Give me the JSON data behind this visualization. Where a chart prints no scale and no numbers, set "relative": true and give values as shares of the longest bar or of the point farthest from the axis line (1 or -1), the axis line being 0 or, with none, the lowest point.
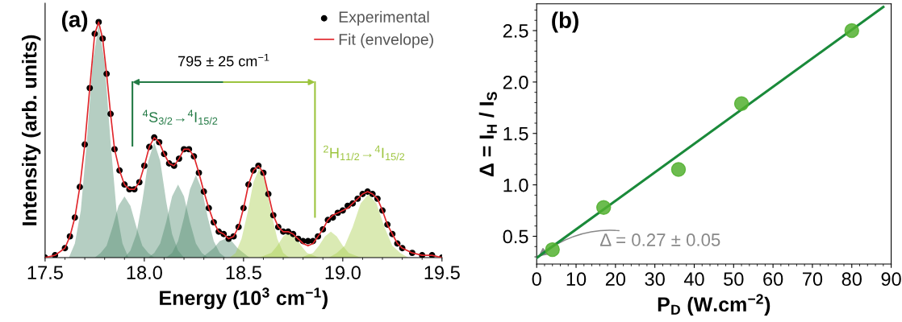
{
  "chart_data": [
    {
      "type": "area",
      "relative": true,
      "xlabel": "Energy (10$^{3}$ cm$^{−1}$)",
      "ylabel": "Intensity (arb. units)",
      "xlim": [
        17.5,
        19.5
      ],
      "xticks": [
        {
          "value": 17.5,
          "label": "17.5"
        },
        {
          "value": 18.0,
          "label": "18.0"
        },
        {
          "value": 18.5,
          "label": "18.5"
        },
        {
          "value": 19.0,
          "label": "19.0"
        },
        {
          "value": 19.5,
          "label": "19.5"
        }
      ],
      "legend": "top right",
      "grid": false,
      "annotations": [
        "(a)",
        "795 ± 25 cm$^{−1}$",
        "$^{4}$S$_{3/2}$→$^{4}$I$_{15/2}$",
        "$^{2}$H$_{11/2}$→$^{4}$I$_{15/2}$"
      ],
      "series": [
        {
          "color": "#4f8a6e",
          "x": [
            17.62,
            17.65,
            17.68,
            17.71,
            17.74,
            17.77,
            17.8,
            17.83,
            17.86,
            17.89,
            17.92
          ],
          "values": [
            0,
            0.06,
            0.2,
            0.49,
            0.83,
            0.99,
            0.83,
            0.49,
            0.2,
            0.06,
            0
          ]
        },
        {
          "color": "#4f8a6e",
          "x": [
            17.75,
            17.78,
            17.81,
            17.84,
            17.87,
            17.9,
            17.93,
            17.96,
            17.99,
            18.02,
            18.05
          ],
          "values": [
            0,
            0.02,
            0.05,
            0.13,
            0.22,
            0.26,
            0.22,
            0.13,
            0.05,
            0.02,
            0
          ]
        },
        {
          "color": "#4f8a6e",
          "x": [
            17.9,
            17.93,
            17.96,
            17.99,
            18.02,
            18.05,
            18.08,
            18.11,
            18.14,
            18.17,
            18.2
          ],
          "values": [
            0,
            0.03,
            0.1,
            0.24,
            0.41,
            0.49,
            0.41,
            0.24,
            0.1,
            0.03,
            0
          ]
        },
        {
          "color": "#4f8a6e",
          "x": [
            18.02,
            18.05,
            18.08,
            18.11,
            18.14,
            18.17,
            18.2,
            18.23,
            18.26,
            18.29,
            18.32
          ],
          "values": [
            0,
            0.02,
            0.06,
            0.15,
            0.26,
            0.31,
            0.26,
            0.15,
            0.06,
            0.02,
            0
          ]
        },
        {
          "color": "#4f8a6e",
          "x": [
            18.11,
            18.14,
            18.17,
            18.2,
            18.23,
            18.26,
            18.29,
            18.32,
            18.35,
            18.38,
            18.41
          ],
          "values": [
            0,
            0.02,
            0.07,
            0.17,
            0.29,
            0.35,
            0.29,
            0.17,
            0.07,
            0.02,
            0
          ]
        },
        {
          "color": "#4f8a6e",
          "x": [
            18.26,
            18.29,
            18.32,
            18.35,
            18.38,
            18.41,
            18.44,
            18.47,
            18.5,
            18.53,
            18.56
          ],
          "values": [
            0,
            0,
            0.02,
            0.04,
            0.07,
            0.08,
            0.07,
            0.04,
            0.02,
            0,
            0
          ]
        },
        {
          "color": "#a8cc4a",
          "x": [
            18.43,
            18.46,
            18.49,
            18.52,
            18.55,
            18.58,
            18.61,
            18.64,
            18.67,
            18.7,
            18.73
          ],
          "values": [
            0,
            0.02,
            0.08,
            0.19,
            0.32,
            0.38,
            0.32,
            0.19,
            0.08,
            0.02,
            0
          ]
        },
        {
          "color": "#a8cc4a",
          "x": [
            18.58,
            18.61,
            18.64,
            18.67,
            18.7,
            18.73,
            18.76,
            18.79,
            18.82,
            18.85,
            18.88
          ],
          "values": [
            0,
            0.01,
            0.02,
            0.05,
            0.09,
            0.11,
            0.09,
            0.05,
            0.02,
            0.01,
            0
          ]
        },
        {
          "color": "#a8cc4a",
          "x": [
            18.79,
            18.82,
            18.85,
            18.88,
            18.91,
            18.94,
            18.97,
            19.0,
            19.03,
            19.06,
            19.09
          ],
          "values": [
            0,
            0.01,
            0.02,
            0.05,
            0.09,
            0.11,
            0.09,
            0.05,
            0.02,
            0.01,
            0
          ]
        },
        {
          "color": "#a8cc4a",
          "x": [
            18.93,
            18.97,
            19.01,
            19.05,
            19.09,
            19.13,
            19.17,
            19.21,
            19.25,
            19.29,
            19.33
          ],
          "values": [
            0,
            0.02,
            0.05,
            0.13,
            0.23,
            0.27,
            0.23,
            0.13,
            0.05,
            0.02,
            0
          ]
        },
        {
          "type": "scatter",
          "name": "Experimental",
          "color": "#000000",
          "marker": "circle",
          "x": [
            17.5,
            17.55,
            17.6,
            17.625,
            17.65,
            17.675,
            17.7,
            17.725,
            17.75,
            17.77,
            17.79,
            17.81,
            17.83,
            17.85,
            17.875,
            17.9,
            17.925,
            17.95,
            17.975,
            18.0,
            18.025,
            18.05,
            18.075,
            18.1,
            18.125,
            18.15,
            18.175,
            18.2,
            18.225,
            18.25,
            18.275,
            18.3,
            18.325,
            18.35,
            18.375,
            18.4,
            18.425,
            18.45,
            18.475,
            18.5,
            18.525,
            18.55,
            18.575,
            18.6,
            18.625,
            18.65,
            18.675,
            18.7,
            18.725,
            18.75,
            18.775,
            18.8,
            18.825,
            18.85,
            18.875,
            18.9,
            18.925,
            18.95,
            18.975,
            19.0,
            19.025,
            19.05,
            19.075,
            19.1,
            19.125,
            19.15,
            19.175,
            19.2,
            19.225,
            19.25,
            19.275,
            19.3,
            19.35,
            19.4,
            19.45,
            19.5
          ],
          "values": [
            0,
            0.01,
            0.04,
            0.09,
            0.17,
            0.3,
            0.48,
            0.72,
            0.95,
            1.0,
            0.93,
            0.78,
            0.61,
            0.46,
            0.37,
            0.31,
            0.29,
            0.29,
            0.32,
            0.39,
            0.47,
            0.51,
            0.49,
            0.44,
            0.4,
            0.39,
            0.42,
            0.46,
            0.46,
            0.43,
            0.36,
            0.28,
            0.21,
            0.15,
            0.11,
            0.1,
            0.08,
            0.09,
            0.13,
            0.21,
            0.31,
            0.37,
            0.39,
            0.36,
            0.27,
            0.18,
            0.13,
            0.11,
            0.11,
            0.1,
            0.08,
            0.07,
            0.07,
            0.07,
            0.09,
            0.12,
            0.16,
            0.17,
            0.19,
            0.2,
            0.22,
            0.23,
            0.25,
            0.27,
            0.28,
            0.27,
            0.25,
            0.2,
            0.14,
            0.1,
            0.06,
            0.04,
            0.02,
            0.01,
            0.01,
            0
          ]
        },
        {
          "type": "line",
          "name": "Fit (envelope)",
          "color": "#e0262b",
          "x": [
            17.5,
            17.55,
            17.6,
            17.625,
            17.65,
            17.675,
            17.7,
            17.725,
            17.75,
            17.77,
            17.79,
            17.81,
            17.83,
            17.85,
            17.875,
            17.9,
            17.925,
            17.95,
            17.975,
            18.0,
            18.025,
            18.05,
            18.075,
            18.1,
            18.125,
            18.15,
            18.175,
            18.2,
            18.225,
            18.25,
            18.275,
            18.3,
            18.325,
            18.35,
            18.375,
            18.4,
            18.425,
            18.45,
            18.475,
            18.5,
            18.525,
            18.55,
            18.575,
            18.6,
            18.625,
            18.65,
            18.675,
            18.7,
            18.725,
            18.75,
            18.775,
            18.8,
            18.825,
            18.85,
            18.875,
            18.9,
            18.925,
            18.95,
            18.975,
            19.0,
            19.025,
            19.05,
            19.075,
            19.1,
            19.125,
            19.15,
            19.175,
            19.2,
            19.225,
            19.25,
            19.275,
            19.3,
            19.35,
            19.4,
            19.45,
            19.5
          ],
          "values": [
            0,
            0.01,
            0.04,
            0.09,
            0.17,
            0.3,
            0.48,
            0.72,
            0.95,
            1.0,
            0.93,
            0.78,
            0.61,
            0.46,
            0.37,
            0.31,
            0.29,
            0.29,
            0.32,
            0.39,
            0.47,
            0.51,
            0.49,
            0.44,
            0.4,
            0.39,
            0.42,
            0.46,
            0.46,
            0.43,
            0.36,
            0.28,
            0.21,
            0.15,
            0.11,
            0.1,
            0.08,
            0.09,
            0.13,
            0.21,
            0.31,
            0.37,
            0.39,
            0.36,
            0.27,
            0.18,
            0.13,
            0.11,
            0.11,
            0.1,
            0.08,
            0.06,
            0.05,
            0.06,
            0.09,
            0.12,
            0.16,
            0.18,
            0.19,
            0.2,
            0.21,
            0.23,
            0.25,
            0.27,
            0.28,
            0.27,
            0.25,
            0.2,
            0.14,
            0.1,
            0.06,
            0.04,
            0.02,
            0.01,
            0.01,
            0
          ]
        }
      ]
    },
    {
      "type": "scatter",
      "xlabel": "P$_{D}$ (W.cm$^{−2}$)",
      "ylabel": "Δ = I$_{H}$ / I$_{S}$",
      "xlim": [
        0,
        90
      ],
      "ylim": [
        0.23,
        2.76
      ],
      "xticks": [
        0,
        10,
        20,
        30,
        40,
        50,
        60,
        70,
        80,
        90
      ],
      "yticks": [
        0.5,
        {
          "value": 1,
          "label": "1.0"
        },
        1.5,
        {
          "value": 2,
          "label": "2.0"
        },
        2.5
      ],
      "grid": false,
      "legend": false,
      "annotations": [
        "(b)",
        {
          "text": "Δ = 0.27 ± 0.05",
          "x": 0,
          "y": 0.29
        }
      ],
      "series": [
        {
          "type": "line",
          "color": "#1a8a3a",
          "x": [
            0,
            88
          ],
          "values": [
            0.29,
            2.73
          ]
        },
        {
          "color": "#52b030",
          "marker": "circle",
          "x": [
            4,
            17,
            36,
            52,
            80
          ],
          "values": [
            0.37,
            0.78,
            1.15,
            1.79,
            2.5
          ]
        }
      ]
    }
  ]
}
